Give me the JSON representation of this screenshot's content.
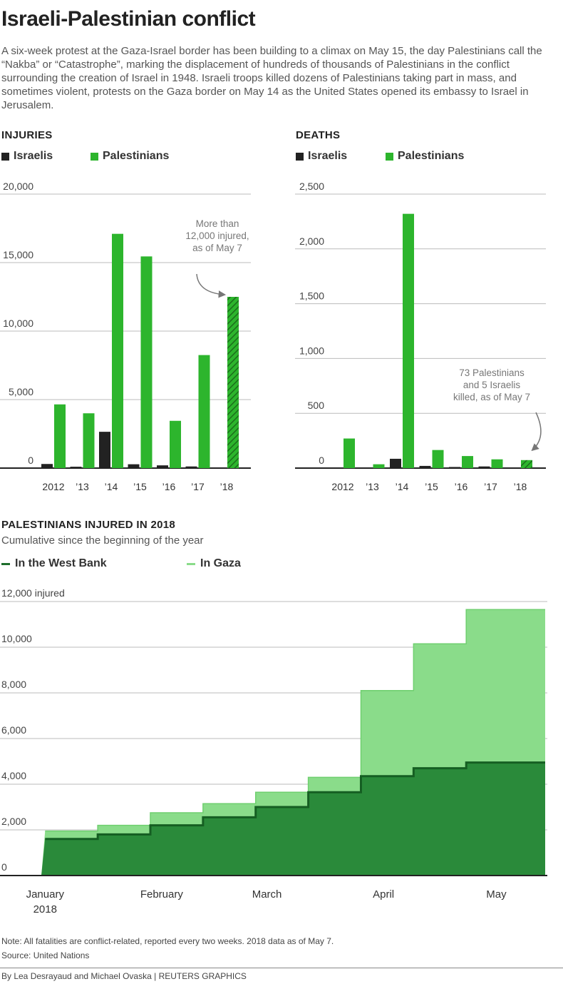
{
  "title": "Israeli-Palestinian conflict",
  "intro": "A six-week protest at the Gaza-Israel border has been building to a climax on May 15, the day Palestinians call the “Nakba” or “Catastrophe”, marking the displacement of hundreds of thousands of Palestinians in the conflict surrounding the creation of Israel in 1948. Israeli troops killed dozens of Palestinians taking part in mass, and sometimes violent, protests on the Gaza border on May 14 as the United States opened its embassy to Israel in Jerusalem.",
  "colors": {
    "israelis": "#222222",
    "palestinians": "#2db52d",
    "west_bank": "#2a8a3a",
    "gaza": "#8adc8a"
  },
  "chart_data": [
    {
      "type": "bar",
      "title": "INJURIES",
      "categories": [
        "2012",
        "’13",
        "’14",
        "’15",
        "’16",
        "’17",
        "’18"
      ],
      "series": [
        {
          "name": "Israelis",
          "values": [
            300,
            100,
            2650,
            280,
            200,
            120,
            40
          ]
        },
        {
          "name": "Palestinians",
          "values": [
            4650,
            4000,
            17100,
            15450,
            3450,
            8250,
            12500
          ]
        }
      ],
      "ylim": [
        0,
        20000
      ],
      "yticks": [
        {
          "value": 0,
          "label": "0"
        },
        {
          "value": 5000,
          "label": "5,000"
        },
        {
          "value": 10000,
          "label": "10,000"
        },
        {
          "value": 15000,
          "label": "15,000"
        },
        {
          "value": 20000,
          "label": "20,000"
        }
      ],
      "annotation": [
        "More than",
        "12,000 injured,",
        "as of May 7"
      ],
      "legend": "top-left",
      "grid": true
    },
    {
      "type": "bar",
      "title": "DEATHS",
      "categories": [
        "2012",
        "’13",
        "’14",
        "’15",
        "’16",
        "’17",
        "’18"
      ],
      "series": [
        {
          "name": "Israelis",
          "values": [
            4,
            0,
            85,
            20,
            10,
            15,
            5
          ]
        },
        {
          "name": "Palestinians",
          "values": [
            270,
            35,
            2320,
            165,
            110,
            80,
            73
          ]
        }
      ],
      "ylim": [
        0,
        2500
      ],
      "yticks": [
        {
          "value": 0,
          "label": "0"
        },
        {
          "value": 500,
          "label": "500"
        },
        {
          "value": 1000,
          "label": "1,000"
        },
        {
          "value": 1500,
          "label": "1,500"
        },
        {
          "value": 2000,
          "label": "2,000"
        },
        {
          "value": 2500,
          "label": "2,500"
        }
      ],
      "annotation": [
        "73 Palestinians",
        "and 5 Israelis",
        "killed, as of May 7"
      ],
      "legend": "top-left",
      "grid": true
    },
    {
      "type": "area",
      "title": "PALESTINIANS INJURED IN 2018",
      "subtitle": "Cumulative since the beginning of the year",
      "x": [
        "2018-01-01",
        "2018-01-15",
        "2018-01-29",
        "2018-02-12",
        "2018-02-26",
        "2018-03-12",
        "2018-03-26",
        "2018-04-09",
        "2018-04-23",
        "2018-05-07"
      ],
      "series": [
        {
          "name": "In the West Bank",
          "values": [
            1600,
            1800,
            2200,
            2550,
            3000,
            3650,
            4350,
            4700,
            4950,
            4950
          ]
        },
        {
          "name": "In Gaza",
          "values": [
            1950,
            2200,
            2750,
            3150,
            3650,
            4300,
            8100,
            10150,
            11650,
            11650
          ]
        }
      ],
      "ylim": [
        0,
        12000
      ],
      "yticks": [
        {
          "value": 0,
          "label": "0"
        },
        {
          "value": 2000,
          "label": "2,000"
        },
        {
          "value": 4000,
          "label": "4,000"
        },
        {
          "value": 6000,
          "label": "6,000"
        },
        {
          "value": 8000,
          "label": "8,000"
        },
        {
          "value": 10000,
          "label": "10,000"
        },
        {
          "value": 12000,
          "label": "12,000 injured"
        }
      ],
      "xticks": [
        {
          "date": "2018-01-01",
          "label": "January",
          "sub": "2018"
        },
        {
          "date": "2018-02-01",
          "label": "February",
          "sub": ""
        },
        {
          "date": "2018-03-01",
          "label": "March",
          "sub": ""
        },
        {
          "date": "2018-04-01",
          "label": "April",
          "sub": ""
        },
        {
          "date": "2018-05-01",
          "label": "May",
          "sub": ""
        }
      ],
      "legend": "top-left",
      "grid": true
    }
  ],
  "note": "Note: All fatalities are conflict-related, reported every two weeks. 2018 data as of May 7.",
  "source": "Source: United Nations",
  "byline": "By Lea Desrayaud and Michael Ovaska | REUTERS GRAPHICS"
}
